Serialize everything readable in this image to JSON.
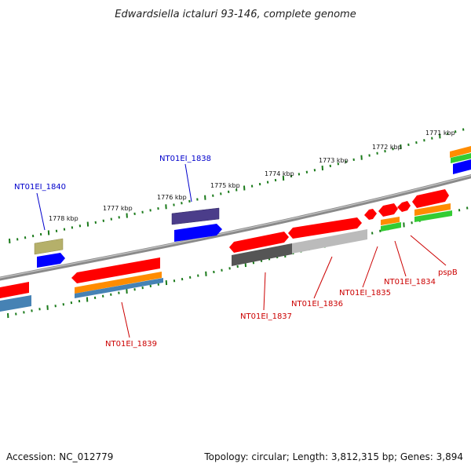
{
  "title": "Edwardsiella ictaluri 93-146, complete genome",
  "footer": {
    "accession": "Accession: NC_012779",
    "topology": "Topology: circular; Length: 3,812,315 bp; Genes: 3,894"
  },
  "colors": {
    "backbone": "#777777",
    "ticks": "#1a7a1a",
    "gene_red": "#ff0000",
    "gene_blue": "#0000ff",
    "gene_purple": "#4b3d8a",
    "gene_olive": "#b5b06a",
    "gene_orange": "#ff8c00",
    "gene_green": "#33cc33",
    "gene_steel": "#4682b4",
    "gene_darkgray": "#555555",
    "gene_lightgray": "#bbbbbb",
    "label_blue": "#0000cc",
    "label_red": "#cc0000"
  },
  "tick_labels": [
    "1771 kbp",
    "1772 kbp",
    "1773 kbp",
    "1774 kbp",
    "1775 kbp",
    "1776 kbp",
    "1777 kbp",
    "1778 kbp"
  ],
  "gene_labels": {
    "nt01ei_1840": "NT01EI_1840",
    "nt01ei_1838": "NT01EI_1838",
    "nt01ei_1839": "NT01EI_1839",
    "nt01ei_1837": "NT01EI_1837",
    "nt01ei_1836": "NT01EI_1836",
    "nt01ei_1835": "NT01EI_1835",
    "nt01ei_1834": "NT01EI_1834",
    "pspb": "pspB"
  }
}
